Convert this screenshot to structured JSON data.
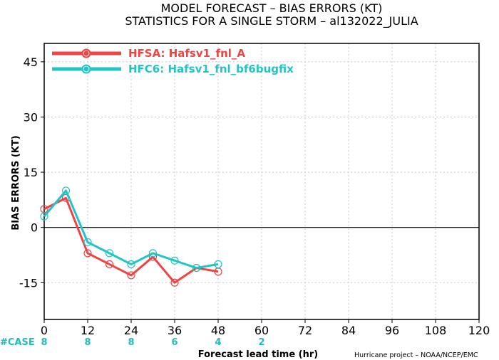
{
  "title_line1": "MODEL FORECAST – BIAS ERRORS (KT)",
  "title_line2": "STATISTICS FOR A SINGLE STORM – al132022_JULIA",
  "credit": "Hurricane project – NOAA/NCEP/EMC",
  "case_label": "#CASE",
  "case_color": "#22bbbb",
  "case_counts": [
    {
      "x": 0,
      "n": "8"
    },
    {
      "x": 12,
      "n": "8"
    },
    {
      "x": 24,
      "n": "8"
    },
    {
      "x": 36,
      "n": "6"
    },
    {
      "x": 48,
      "n": "4"
    },
    {
      "x": 60,
      "n": "2"
    }
  ],
  "chart_data": {
    "type": "line",
    "title": "MODEL FORECAST – BIAS ERRORS (KT)",
    "subtitle": "STATISTICS FOR A SINGLE STORM – al132022_JULIA",
    "xlabel": "Forecast lead time (hr)",
    "ylabel": "BIAS ERRORS (KT)",
    "xlim": [
      0,
      120
    ],
    "ylim": [
      -25,
      50
    ],
    "xticks": [
      0,
      12,
      24,
      36,
      48,
      60,
      72,
      84,
      96,
      108,
      120
    ],
    "yticks": [
      -15,
      0,
      15,
      30,
      45
    ],
    "grid": true,
    "legend_position": "top-left",
    "series": [
      {
        "name": "HFSA: Hafsv1_fnl_A",
        "color": "#ee4444",
        "x": [
          0,
          6,
          12,
          18,
          24,
          30,
          36,
          42,
          48
        ],
        "y": [
          5,
          8,
          -7,
          -10,
          -13,
          -8,
          -15,
          -11,
          -12
        ]
      },
      {
        "name": "HFC6: Hafsv1_fnl_bf6bugfix",
        "color": "#22c5c5",
        "x": [
          0,
          6,
          12,
          18,
          24,
          30,
          36,
          42,
          48
        ],
        "y": [
          3,
          10,
          -4,
          -7,
          -10,
          -7,
          -9,
          -11,
          -10
        ]
      }
    ]
  }
}
